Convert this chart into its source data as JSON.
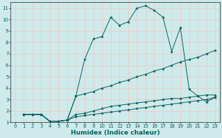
{
  "xlabel": "Humidex (Indice chaleur)",
  "xlim": [
    -0.5,
    23.5
  ],
  "ylim": [
    1,
    11.5
  ],
  "bg_color": "#ceeaea",
  "grid_color": "#f0c8c8",
  "line_color": "#006060",
  "series": [
    {
      "x": [
        1,
        2,
        3,
        4,
        5,
        6,
        7,
        8,
        9,
        10,
        11,
        12,
        13,
        14,
        15,
        16,
        17,
        18,
        19,
        20,
        21,
        22,
        23
      ],
      "y": [
        1.7,
        1.7,
        1.7,
        1.1,
        1.1,
        1.2,
        3.3,
        6.5,
        8.3,
        8.5,
        10.2,
        9.5,
        9.8,
        11.0,
        11.2,
        10.8,
        10.2,
        7.2,
        9.3,
        3.9,
        3.3,
        2.8,
        3.2
      ]
    },
    {
      "x": [
        1,
        2,
        3,
        4,
        5,
        6,
        7,
        8,
        9,
        10,
        11,
        12,
        13,
        14,
        15,
        16,
        17,
        18,
        19,
        20,
        21,
        22,
        23
      ],
      "y": [
        1.7,
        1.7,
        1.7,
        1.1,
        1.1,
        1.2,
        3.3,
        3.5,
        3.7,
        4.0,
        4.2,
        4.5,
        4.7,
        5.0,
        5.2,
        5.5,
        5.7,
        6.0,
        6.3,
        6.5,
        6.7,
        7.0,
        7.3
      ]
    },
    {
      "x": [
        1,
        2,
        3,
        4,
        5,
        6,
        7,
        8,
        9,
        10,
        11,
        12,
        13,
        14,
        15,
        16,
        17,
        18,
        19,
        20,
        21,
        22,
        23
      ],
      "y": [
        1.7,
        1.7,
        1.7,
        1.1,
        1.1,
        1.2,
        1.7,
        1.8,
        2.0,
        2.2,
        2.4,
        2.5,
        2.6,
        2.7,
        2.8,
        2.9,
        3.0,
        3.1,
        3.1,
        3.2,
        3.3,
        3.4,
        3.4
      ]
    },
    {
      "x": [
        1,
        2,
        3,
        4,
        5,
        6,
        7,
        8,
        9,
        10,
        11,
        12,
        13,
        14,
        15,
        16,
        17,
        18,
        19,
        20,
        21,
        22,
        23
      ],
      "y": [
        1.7,
        1.7,
        1.7,
        1.1,
        1.1,
        1.2,
        1.5,
        1.6,
        1.7,
        1.8,
        1.9,
        2.0,
        2.1,
        2.2,
        2.3,
        2.4,
        2.5,
        2.6,
        2.7,
        2.8,
        2.9,
        3.0,
        3.2
      ]
    }
  ],
  "xticks": [
    0,
    1,
    2,
    3,
    4,
    5,
    6,
    7,
    8,
    9,
    10,
    11,
    12,
    13,
    14,
    15,
    16,
    17,
    18,
    19,
    20,
    21,
    22,
    23
  ],
  "yticks": [
    1,
    2,
    3,
    4,
    5,
    6,
    7,
    8,
    9,
    10,
    11
  ],
  "tick_fontsize": 5.0,
  "xlabel_fontsize": 6.5
}
